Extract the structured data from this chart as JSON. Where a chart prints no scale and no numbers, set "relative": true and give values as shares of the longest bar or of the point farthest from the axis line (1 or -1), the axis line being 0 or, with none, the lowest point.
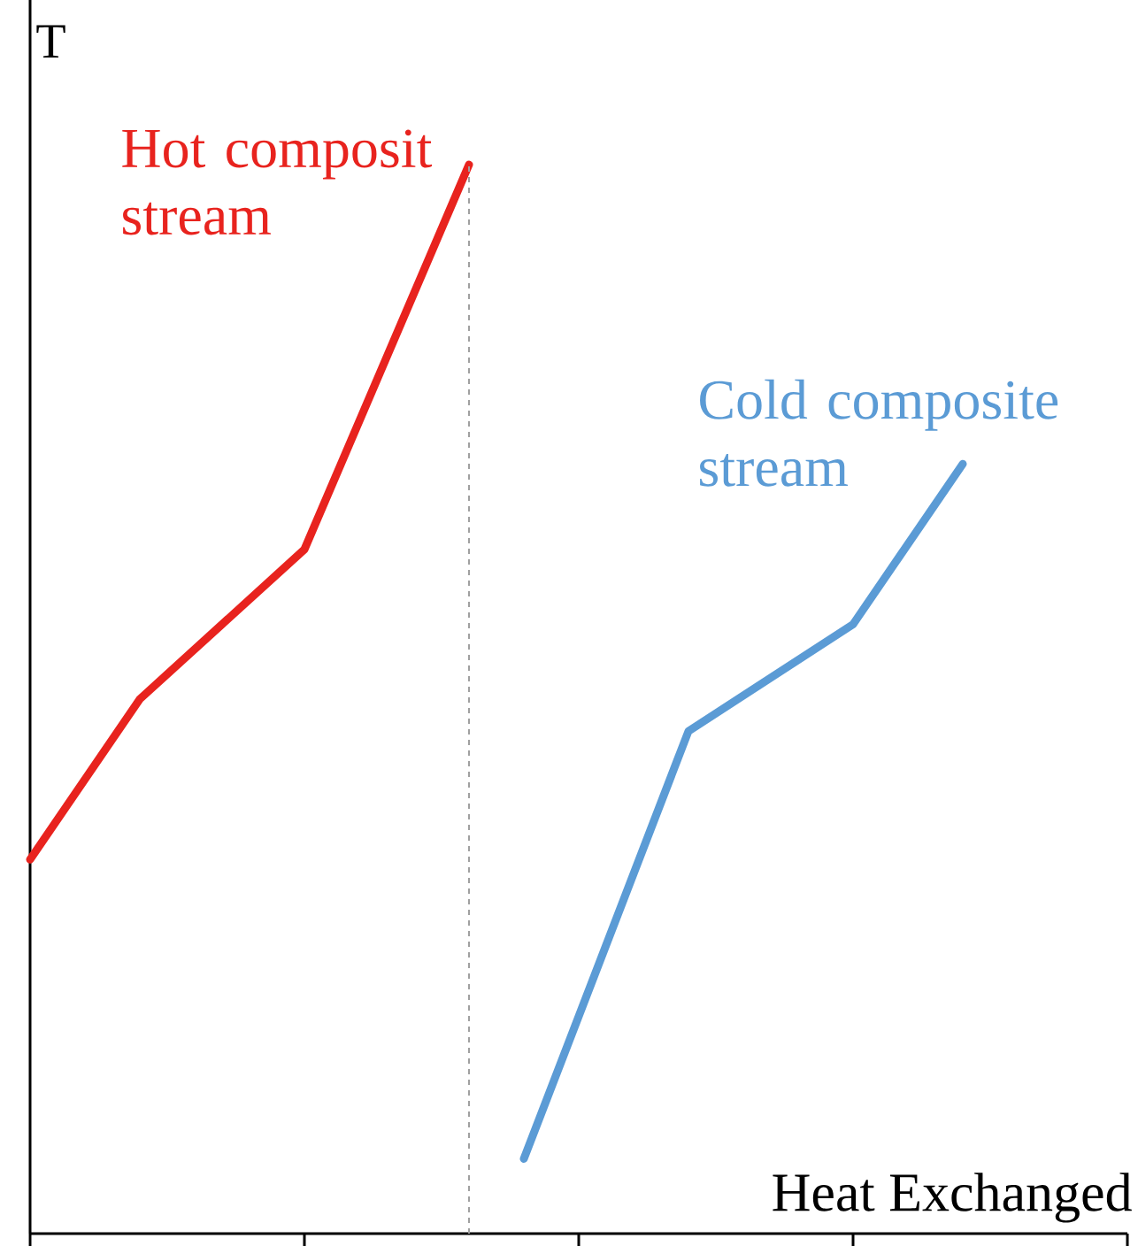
{
  "chart_data": {
    "type": "line",
    "relative": true,
    "xlabel": "Heat Exchanged",
    "ylabel": "T",
    "categories": [
      null,
      null,
      null,
      null,
      null,
      null,
      null,
      null,
      null,
      null,
      null,
      null,
      null,
      null,
      null,
      null,
      null,
      null,
      null,
      null,
      null
    ],
    "grid": false,
    "line_style": "solid",
    "series": [
      {
        "name": "Hot composit stream",
        "color": "#e8231e",
        "values": [
          0.35,
          null,
          0.5,
          null,
          null,
          0.64,
          null,
          null,
          1,
          null,
          null,
          null,
          null,
          null,
          null,
          null,
          null,
          null,
          null,
          null,
          null
        ]
      },
      {
        "name": "Cold composite stream",
        "color": "#5b9bd5",
        "values": [
          null,
          null,
          null,
          null,
          null,
          null,
          null,
          null,
          null,
          0.07,
          null,
          null,
          0.47,
          null,
          null,
          0.57,
          null,
          0.72,
          null,
          null,
          null
        ]
      }
    ]
  }
}
